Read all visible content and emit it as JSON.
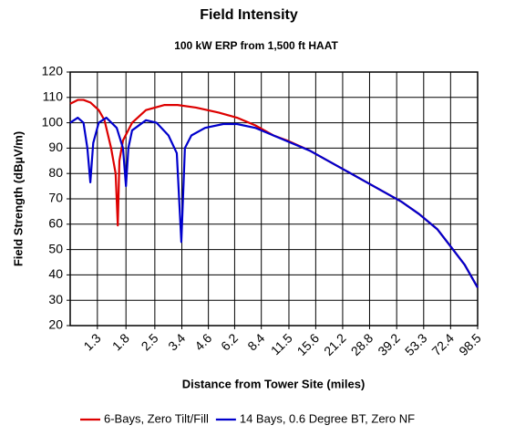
{
  "chart_data": {
    "type": "line",
    "title": "Field Intensity",
    "subtitle": "100 kW ERP from 1,500 ft HAAT",
    "x_label": "Distance from Tower Site (miles)",
    "y_label": "Field Strength (dBµV/m)",
    "xscale": "log",
    "xlim": [
      0.954,
      98.5
    ],
    "xticks": [
      1.3,
      1.8,
      2.5,
      3.4,
      4.6,
      6.2,
      8.4,
      11.5,
      15.6,
      21.2,
      28.8,
      39.2,
      53.3,
      72.4,
      98.5
    ],
    "ylim": [
      20,
      120
    ],
    "yticks": [
      20,
      30,
      40,
      50,
      60,
      70,
      80,
      90,
      100,
      110,
      120
    ],
    "grid": true,
    "legend": "bottom",
    "series": [
      {
        "name": "6-Bays, Zero Tilt/Fill",
        "color": "#dd0000",
        "x": [
          0.954,
          1.04,
          1.11,
          1.2,
          1.32,
          1.41,
          1.52,
          1.6,
          1.64,
          1.67,
          1.74,
          1.93,
          2.26,
          2.78,
          3.24,
          3.99,
          5.17,
          6.37,
          7.83,
          9.64,
          11.26,
          14.59,
          17.95,
          22.09,
          27.19,
          33.44,
          41.14,
          50.6,
          62.3,
          72.8,
          85.0,
          98.5
        ],
        "values": [
          107.5,
          109,
          109,
          108,
          105,
          101,
          90,
          80,
          59.5,
          85,
          93,
          100,
          105,
          107,
          107,
          106,
          104,
          102,
          99,
          95,
          93,
          89,
          85,
          81,
          77,
          73,
          69,
          64,
          58,
          51,
          44,
          35
        ]
      },
      {
        "name": "14 Bays, 0.6 Degree BT, Zero NF",
        "color": "#0000cc",
        "x": [
          0.954,
          1.04,
          1.11,
          1.16,
          1.2,
          1.24,
          1.32,
          1.44,
          1.62,
          1.74,
          1.8,
          1.85,
          1.93,
          2.26,
          2.55,
          2.92,
          3.21,
          3.38,
          3.52,
          3.79,
          4.43,
          5.45,
          6.37,
          7.83,
          9.64,
          11.86,
          14.59,
          17.95,
          22.09,
          27.19,
          33.44,
          41.14,
          50.6,
          62.3,
          72.8,
          85.0,
          98.5
        ],
        "values": [
          100,
          102,
          100,
          90,
          76.5,
          92,
          100,
          102,
          98,
          90,
          75,
          90,
          97,
          101,
          100,
          95,
          88,
          53,
          90,
          95,
          98,
          99.5,
          99.5,
          98,
          95,
          92,
          89,
          85,
          81,
          77,
          73,
          69,
          64,
          58,
          51,
          44,
          35
        ]
      }
    ]
  }
}
